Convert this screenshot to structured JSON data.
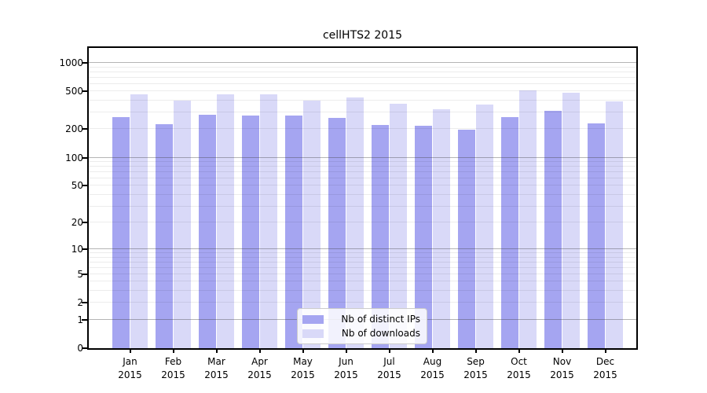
{
  "title": "cellHTS2 2015",
  "chart_data": {
    "type": "bar",
    "title": "cellHTS2 2015",
    "scale": "log1p",
    "ylim": [
      0,
      1000
    ],
    "grid": "horizontal, log minor + major, drawn over bars",
    "legend_position": "bottom-center",
    "categories": [
      "Jan",
      "Feb",
      "Mar",
      "Apr",
      "May",
      "Jun",
      "Jul",
      "Aug",
      "Sep",
      "Oct",
      "Nov",
      "Dec"
    ],
    "x_year_label": "2015",
    "y_ticks": [
      0,
      1,
      2,
      5,
      10,
      20,
      50,
      100,
      200,
      500,
      1000
    ],
    "series": [
      {
        "name": "Nb of distinct IPs",
        "color": "#a5a5f1",
        "values": [
          266,
          227,
          287,
          281,
          277,
          264,
          220,
          218,
          196,
          271,
          314,
          231
        ]
      },
      {
        "name": "Nb of downloads",
        "color": "#d9d9f8",
        "values": [
          466,
          398,
          466,
          466,
          399,
          436,
          369,
          324,
          363,
          515,
          481,
          392
        ]
      }
    ]
  }
}
